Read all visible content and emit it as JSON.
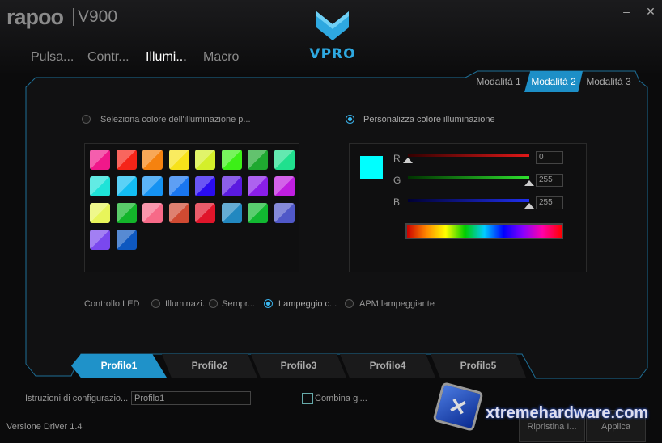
{
  "header": {
    "brand": "rapoo",
    "model": "V900",
    "logo_text": "VPRO",
    "minimize": "–",
    "close": "✕"
  },
  "tabs": [
    {
      "label": "Pulsa..."
    },
    {
      "label": "Contr..."
    },
    {
      "label": "Illumi...",
      "active": true
    },
    {
      "label": "Macro"
    }
  ],
  "modes": [
    {
      "label": "Modalità 1"
    },
    {
      "label": "Modalità 2",
      "active": true
    },
    {
      "label": "Modalità 3"
    }
  ],
  "left_option": {
    "label": "Seleziona colore dell'illuminazione p...",
    "selected": false
  },
  "right_option": {
    "label": "Personalizza colore illuminazione",
    "selected": true
  },
  "swatches": [
    "#f0188a",
    "#f52418",
    "#f5820f",
    "#f7e21a",
    "#d4ef2a",
    "#3cf017",
    "#1fa830",
    "#20e08e",
    "#1ee3d8",
    "#13bdf2",
    "#1592f2",
    "#1976f0",
    "#2a0cf0",
    "#5a1ae0",
    "#8a1ee8",
    "#c01ee0",
    "#e8f55a",
    "#13b52a",
    "#f76a88",
    "#d04a32",
    "#e0152a",
    "#2288c0",
    "#11b831",
    "#5058c8",
    "#7a48ee",
    "#0e58c0"
  ],
  "color": {
    "preview": "#00ffff",
    "r_label": "R",
    "g_label": "G",
    "b_label": "B",
    "r": "0",
    "g": "255",
    "b": "255"
  },
  "led": {
    "label": "Controllo LED",
    "options": [
      {
        "label": "Illuminazi..",
        "selected": false
      },
      {
        "label": "Sempr...",
        "selected": false
      },
      {
        "label": "Lampeggio c...",
        "selected": true
      },
      {
        "label": "APM lampeggiante",
        "selected": false
      }
    ]
  },
  "profiles": [
    {
      "label": "Profilo1",
      "active": true
    },
    {
      "label": "Profilo2"
    },
    {
      "label": "Profilo3"
    },
    {
      "label": "Profilo4"
    },
    {
      "label": "Profilo5"
    }
  ],
  "footer": {
    "config_label": "Istruzioni di configurazio...",
    "config_value": "Profilo1",
    "combine_label": "Combina gi...",
    "version": "Versione Driver 1.4",
    "reset": "Ripristina I...",
    "apply": "Applica",
    "watermark": "xtremehardware.com"
  },
  "accent": "#1f92c9"
}
